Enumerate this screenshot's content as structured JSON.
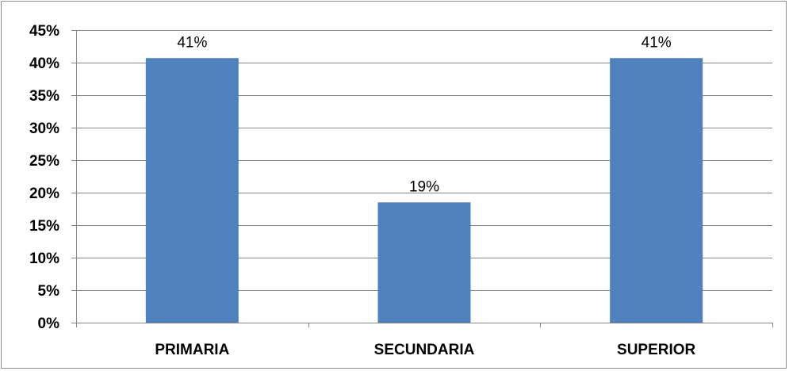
{
  "chart_data": {
    "type": "bar",
    "categories": [
      "PRIMARIA",
      "SECUNDARIA",
      "SUPERIOR"
    ],
    "values": [
      40.7,
      18.5,
      40.7
    ],
    "data_labels": [
      "41%",
      "19%",
      "41%"
    ],
    "title": "",
    "xlabel": "",
    "ylabel": "",
    "ylim": [
      0,
      45
    ],
    "y_ticks": [
      0,
      5,
      10,
      15,
      20,
      25,
      30,
      35,
      40,
      45
    ],
    "y_tick_labels": [
      "0%",
      "5%",
      "10%",
      "15%",
      "20%",
      "25%",
      "30%",
      "35%",
      "40%",
      "45%"
    ],
    "grid": true,
    "legend": "none",
    "colors": {
      "bar": "#4f81bd",
      "grid": "#868686",
      "axis": "#868686",
      "border": "#8c8c8c"
    }
  }
}
